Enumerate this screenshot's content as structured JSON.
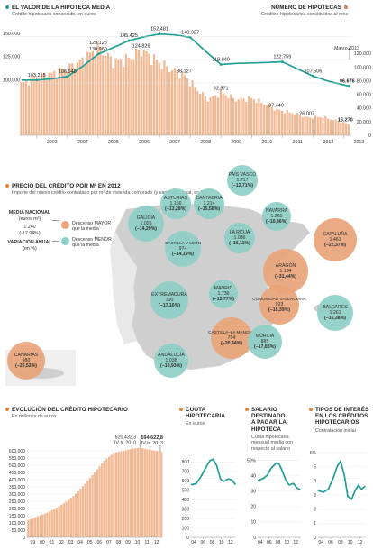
{
  "top": {
    "left_title": "EL VALOR DE LA HIPOTECA MEDIA",
    "left_sub": "Crédito hipotecario concedido, en euros",
    "right_title": "NÚMERO DE HIPOTECAS",
    "right_sub": "Créditos hipotecarios constituidos al mes",
    "march_label": "Marzo 2013"
  },
  "chart_data": [
    {
      "type": "line",
      "title": "EL VALOR DE LA HIPOTECA MEDIA",
      "subtitle": "Crédito hipotecario concedido, en euros",
      "ylim": [
        75000,
        157000
      ],
      "yticks": [
        "150.000",
        "125.000",
        "100.000"
      ],
      "annotations": [
        {
          "x": 2003.0,
          "y": 103215,
          "label": "103.215"
        },
        {
          "x": 2004.0,
          "y": 106940,
          "label": "106.940"
        },
        {
          "x": 2005.0,
          "y": 130960,
          "label": "130.960"
        },
        {
          "x": 2006.0,
          "y": 145425,
          "label": "145.425"
        },
        {
          "x": 2007.0,
          "y": 152481,
          "label": "152.481"
        },
        {
          "x": 2008.0,
          "y": 148927,
          "label": "148.927"
        },
        {
          "x": 2009.0,
          "y": 119840,
          "label": "119.840"
        },
        {
          "x": 2011.0,
          "y": 122759,
          "label": "122.759"
        },
        {
          "x": 2012.0,
          "y": 107506,
          "label": "107.506"
        },
        {
          "x": 2013.17,
          "y": 96676,
          "label": "96.676"
        }
      ],
      "points": [
        [
          2002.5,
          103215
        ],
        [
          2003.0,
          103215
        ],
        [
          2003.5,
          104500
        ],
        [
          2004.0,
          106940
        ],
        [
          2004.5,
          118000
        ],
        [
          2005.0,
          130960
        ],
        [
          2005.5,
          138000
        ],
        [
          2006.0,
          145425
        ],
        [
          2006.5,
          149500
        ],
        [
          2007.0,
          152481
        ],
        [
          2007.5,
          151500
        ],
        [
          2008.0,
          148927
        ],
        [
          2008.5,
          134000
        ],
        [
          2009.0,
          119840
        ],
        [
          2009.5,
          121000
        ],
        [
          2010.0,
          121500
        ],
        [
          2010.5,
          122000
        ],
        [
          2011.0,
          122759
        ],
        [
          2011.5,
          115000
        ],
        [
          2012.0,
          107506
        ],
        [
          2012.5,
          102000
        ],
        [
          2013.0,
          98000
        ],
        [
          2013.17,
          96676
        ]
      ]
    },
    {
      "type": "bar",
      "title": "NÚMERO DE HIPOTECAS",
      "subtitle": "Créditos hipotecarios constituidos al mes",
      "ylim": [
        0,
        140000
      ],
      "yticks": [
        "120.000",
        "100.000",
        "80.000",
        "60.000",
        "40.000",
        "20.000",
        "0"
      ],
      "xticks": [
        "2003",
        "2004",
        "2005",
        "2006",
        "2007",
        "2008",
        "2009",
        "2010",
        "2011",
        "2012",
        "2013"
      ],
      "annotations": [
        {
          "x": 2005.0,
          "y": 129128,
          "label": "129.128"
        },
        {
          "x": 2006.4,
          "y": 124826,
          "label": "124.826"
        },
        {
          "x": 2007.8,
          "y": 88127,
          "label": "88.127"
        },
        {
          "x": 2009.0,
          "y": 62971,
          "label": "62.971"
        },
        {
          "x": 2010.8,
          "y": 37440,
          "label": "37.440"
        },
        {
          "x": 2011.8,
          "y": 26007,
          "label": "26.007"
        },
        {
          "x": 2013.17,
          "y": 16270,
          "label": "16.270"
        }
      ],
      "anchors": [
        [
          2002.5,
          75000
        ],
        [
          2003.0,
          85000
        ],
        [
          2003.5,
          90000
        ],
        [
          2004.0,
          98000
        ],
        [
          2004.5,
          110000
        ],
        [
          2005.0,
          129128
        ],
        [
          2005.5,
          108000
        ],
        [
          2006.0,
          112000
        ],
        [
          2006.4,
          124826
        ],
        [
          2006.8,
          112000
        ],
        [
          2007.3,
          98000
        ],
        [
          2007.8,
          88127
        ],
        [
          2008.2,
          68000
        ],
        [
          2008.6,
          52000
        ],
        [
          2009.0,
          62971
        ],
        [
          2009.5,
          52000
        ],
        [
          2010.0,
          54000
        ],
        [
          2010.5,
          45000
        ],
        [
          2010.8,
          37440
        ],
        [
          2011.3,
          33000
        ],
        [
          2011.8,
          26007
        ],
        [
          2012.3,
          27000
        ],
        [
          2012.8,
          21000
        ],
        [
          2013.17,
          16270
        ]
      ]
    },
    {
      "type": "bar",
      "title": "EVOLUCIÓN DEL CRÉDITO HIPOTECARIO",
      "subtitle": "En millones de euros",
      "ylim": [
        0,
        650000
      ],
      "yticks": [
        "600.000",
        "550.000",
        "500.000",
        "450.000",
        "400.000",
        "350.000",
        "300.000",
        "250.000",
        "200.000",
        "150.000",
        "100.000",
        "50.000",
        "0"
      ],
      "xticks": [
        "99",
        "00",
        "01",
        "02",
        "03",
        "04",
        "05",
        "06",
        "07",
        "08",
        "09",
        "10",
        "11",
        "12"
      ],
      "annotations": [
        {
          "label": "620.433,3",
          "sub": "IV tr. 2010",
          "x": 2010.75,
          "y": 620433.3
        },
        {
          "label": "594.622,8",
          "sub": "IV tr. 2013",
          "x": 2013.0,
          "y": 594622.8
        }
      ],
      "anchors": [
        [
          1999.0,
          120000
        ],
        [
          2000.0,
          145000
        ],
        [
          2001.0,
          170000
        ],
        [
          2002.0,
          205000
        ],
        [
          2003.0,
          245000
        ],
        [
          2004.0,
          300000
        ],
        [
          2005.0,
          370000
        ],
        [
          2006.0,
          450000
        ],
        [
          2007.0,
          530000
        ],
        [
          2008.0,
          585000
        ],
        [
          2009.0,
          600000
        ],
        [
          2010.0,
          615000
        ],
        [
          2010.75,
          620433.3
        ],
        [
          2011.0,
          618000
        ],
        [
          2012.0,
          605000
        ],
        [
          2013.0,
          594622.8
        ]
      ]
    },
    {
      "type": "line",
      "title": "CUOTA HIPOTECARIA",
      "subtitle": "En euros",
      "ylim": [
        0,
        900
      ],
      "yticks": [
        "800",
        "700",
        "600",
        "500",
        "400",
        "300",
        "200",
        "100",
        "0"
      ],
      "xticks": [
        "04",
        "06",
        "08",
        "10",
        "12"
      ],
      "points": [
        [
          2003.5,
          560
        ],
        [
          2004.5,
          570
        ],
        [
          2005.5,
          640
        ],
        [
          2006.5,
          730
        ],
        [
          2007.5,
          815
        ],
        [
          2008.2,
          830
        ],
        [
          2009.0,
          760
        ],
        [
          2009.8,
          620
        ],
        [
          2010.5,
          595
        ],
        [
          2011.5,
          620
        ],
        [
          2012.3,
          610
        ],
        [
          2013.0,
          565
        ]
      ]
    },
    {
      "type": "line",
      "title": "SALARIO DESTINADO A PAGAR LA HIPOTECA",
      "subtitle": "Cuota hipotecaria mensual media con respecto al salario",
      "ylim": [
        0,
        55
      ],
      "yticks": [
        "50%",
        "40",
        "30",
        "20",
        "10",
        "0"
      ],
      "xticks": [
        "04",
        "06",
        "08",
        "10",
        "12"
      ],
      "points": [
        [
          2003.5,
          37
        ],
        [
          2004.5,
          38
        ],
        [
          2005.5,
          40
        ],
        [
          2006.5,
          45
        ],
        [
          2007.5,
          48
        ],
        [
          2008.2,
          48
        ],
        [
          2009.0,
          43
        ],
        [
          2009.8,
          37
        ],
        [
          2010.5,
          34
        ],
        [
          2011.5,
          35
        ],
        [
          2012.3,
          32
        ],
        [
          2013.0,
          31
        ]
      ]
    },
    {
      "type": "line",
      "title": "TIPOS DE INTERÉS EN LOS CRÉDITOS HIPOTECARIOS",
      "subtitle": "Contratación inicial",
      "ylim": [
        0,
        6
      ],
      "yticks": [
        "6%",
        "5",
        "4",
        "3",
        "2",
        "1",
        "0"
      ],
      "xticks": [
        "04",
        "06",
        "08",
        "10",
        "12"
      ],
      "points": [
        [
          2003.5,
          3.3
        ],
        [
          2004.5,
          3.2
        ],
        [
          2005.5,
          3.4
        ],
        [
          2006.5,
          4.2
        ],
        [
          2007.3,
          5.0
        ],
        [
          2008.0,
          5.4
        ],
        [
          2008.8,
          4.4
        ],
        [
          2009.5,
          2.9
        ],
        [
          2010.3,
          2.7
        ],
        [
          2011.0,
          3.3
        ],
        [
          2011.7,
          3.7
        ],
        [
          2012.3,
          3.4
        ],
        [
          2013.0,
          3.6
        ]
      ]
    }
  ],
  "precio": {
    "title": "PRECIO DEL CRÉDITO POR m² EN 2012",
    "sub": "Importe del nuevo crédito contratado por m² de vivienda comprado (y variación anual, en %)",
    "media_label1": "MEDIA NACIONAL",
    "media_label2": "(euros m²)",
    "media_value": "1.240",
    "media_pct": "(-17,94%)",
    "var_label1": "VARIACIÓN ANUAL",
    "var_label2": "(en %)",
    "legend_mayor1": "Descenso MAYOR",
    "legend_mayor2": "que la media",
    "legend_menor1": "Descenso MENOR",
    "legend_menor2": "que la media",
    "color_mayor": "#e9a47a",
    "color_menor": "#8fd0c6"
  },
  "regions": [
    {
      "name": "GALICIA",
      "value": "1.026",
      "pct": "(−14,29%)",
      "group": "menor"
    },
    {
      "name": "ASTURIAS",
      "value": "1.156",
      "pct": "(−13,28%)",
      "group": "menor"
    },
    {
      "name": "CANTABRIA",
      "value": "1.214",
      "pct": "(−15,58%)",
      "group": "menor"
    },
    {
      "name": "PAÍS VASCO",
      "value": "1.717",
      "pct": "(−12,71%)",
      "group": "menor"
    },
    {
      "name": "NAVARRA",
      "value": "1.265",
      "pct": "(−10,86%)",
      "group": "menor"
    },
    {
      "name": "CASTILLA Y LEÓN",
      "value": "974",
      "pct": "(−14,19%)",
      "group": "menor"
    },
    {
      "name": "LA RIOJA",
      "value": "1.036",
      "pct": "(−16,11%)",
      "group": "menor"
    },
    {
      "name": "ARAGÓN",
      "value": "1.134",
      "pct": "(−31,44%)",
      "group": "mayor"
    },
    {
      "name": "CATALUÑA",
      "value": "1.461",
      "pct": "(−22,37%)",
      "group": "mayor"
    },
    {
      "name": "MADRID",
      "value": "1.736",
      "pct": "(−15,77%)",
      "group": "menor"
    },
    {
      "name": "EXTREMADURA",
      "value": "700",
      "pct": "(−17,16%)",
      "group": "menor"
    },
    {
      "name": "CASTILLA–LA MANCHA",
      "value": "794",
      "pct": "(−20,44%)",
      "group": "mayor"
    },
    {
      "name": "COMUNIDAD VALENCIANA",
      "value": "923",
      "pct": "(−18,39%)",
      "group": "mayor"
    },
    {
      "name": "BALEARES",
      "value": "1.261",
      "pct": "(−16,38%)",
      "group": "menor"
    },
    {
      "name": "ANDALUCÍA",
      "value": "1.038",
      "pct": "(−13,93%)",
      "group": "menor"
    },
    {
      "name": "MURCIA",
      "value": "885",
      "pct": "(−17,83%)",
      "group": "menor"
    },
    {
      "name": "CANARIAS",
      "value": "980",
      "pct": "(−20,52%)",
      "group": "mayor"
    }
  ],
  "bottom": {
    "evol_title": "EVOLUCIÓN DEL CRÉDITO HIPOTECARIO",
    "evol_sub": "En millones de euros",
    "cuota_title1": "CUOTA",
    "cuota_title2": "HIPOTECARIA",
    "cuota_sub": "En euros",
    "salario_title1": "SALARIO",
    "salario_title2": "DESTINADO",
    "salario_title3": "A PAGAR LA",
    "salario_title4": "HIPOTECA",
    "salario_sub1": "Cuota hipotecaria",
    "salario_sub2": "mensual media con",
    "salario_sub3": "respecto al salario",
    "tipos_title1": "TIPOS DE INTERÉS",
    "tipos_title2": "EN LOS CRÉDITOS",
    "tipos_title3": "HIPOTECARIOS",
    "tipos_sub": "Contratación inicial"
  },
  "colors": {
    "teal": "#1f9f95",
    "orange": "#e3803a",
    "bar_orange": "#f2b791",
    "map_gray": "#cfcfcf"
  }
}
